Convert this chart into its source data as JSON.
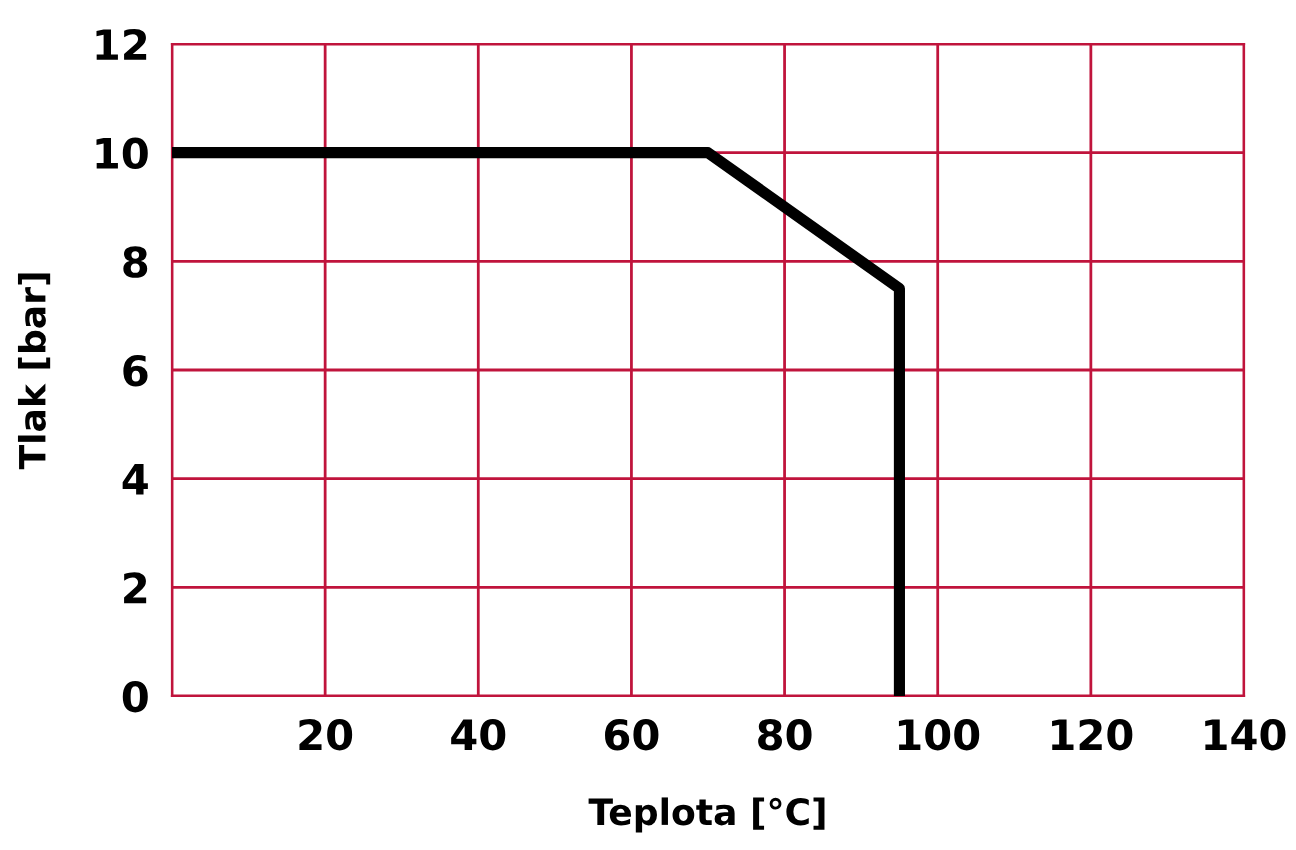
{
  "chart_data": {
    "type": "line",
    "xlabel": "Teplota [°C]",
    "ylabel": "Tlak [bar]",
    "x": [
      0,
      70,
      95,
      95
    ],
    "series": [
      {
        "color": "#000000",
        "values": [
          10,
          10,
          7.5,
          0
        ]
      }
    ],
    "xlim": [
      0,
      140
    ],
    "ylim": [
      0,
      12
    ],
    "xticks": [
      {
        "value": 0,
        "label": null
      },
      20,
      40,
      60,
      80,
      100,
      120,
      140
    ],
    "yticks": [
      0,
      2,
      4,
      6,
      8,
      10,
      12
    ],
    "grid": true,
    "marker": "none",
    "line_style": "solid",
    "legend": false
  }
}
